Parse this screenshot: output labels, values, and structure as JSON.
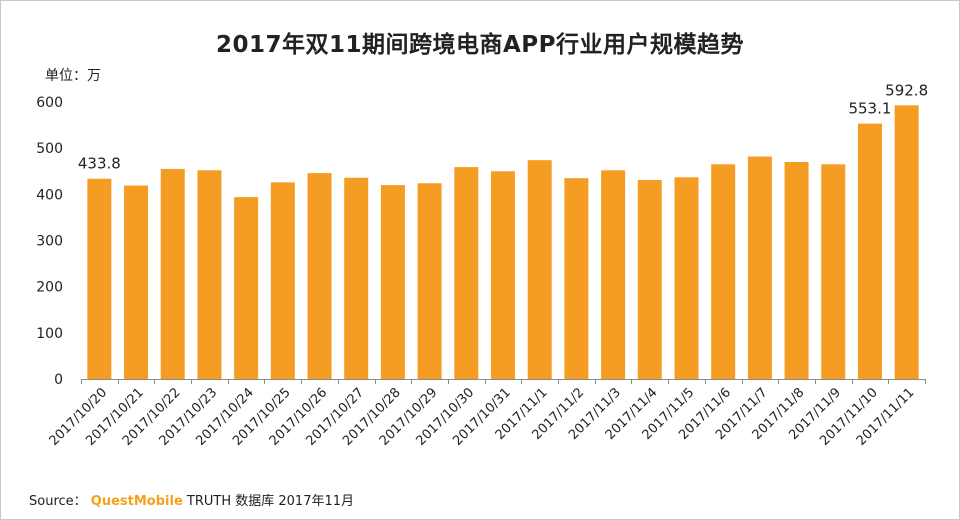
{
  "title": "2017年双11期间跨境电商APP行业用户规模趋势",
  "unit_label": "单位：万",
  "source": {
    "prefix": "Source：",
    "brand": "QuestMobile",
    "suffix": "TRUTH 数据库 2017年11月"
  },
  "colors": {
    "bar": "#f59d22",
    "axis": "#8c8c8c",
    "text": "#222222"
  },
  "chart_data": {
    "type": "bar",
    "title": "2017年双11期间跨境电商APP行业用户规模趋势",
    "ylabel": "单位：万",
    "xlabel": "",
    "ylim": [
      0,
      600
    ],
    "yticks": [
      0,
      100,
      200,
      300,
      400,
      500,
      600
    ],
    "grid": false,
    "categories": [
      "2017/10/20",
      "2017/10/21",
      "2017/10/22",
      "2017/10/23",
      "2017/10/24",
      "2017/10/25",
      "2017/10/26",
      "2017/10/27",
      "2017/10/28",
      "2017/10/29",
      "2017/10/30",
      "2017/10/31",
      "2017/11/1",
      "2017/11/2",
      "2017/11/3",
      "2017/11/4",
      "2017/11/5",
      "2017/11/6",
      "2017/11/7",
      "2017/11/8",
      "2017/11/9",
      "2017/11/10",
      "2017/11/11"
    ],
    "values": [
      433.8,
      419,
      455,
      452,
      394,
      426,
      446,
      436,
      420,
      424,
      459,
      450,
      474,
      435,
      452,
      431,
      437,
      465,
      482,
      470,
      465,
      553.1,
      592.8
    ],
    "data_labels": [
      {
        "index": 0,
        "text": "433.8"
      },
      {
        "index": 21,
        "text": "553.1"
      },
      {
        "index": 22,
        "text": "592.8"
      }
    ]
  }
}
